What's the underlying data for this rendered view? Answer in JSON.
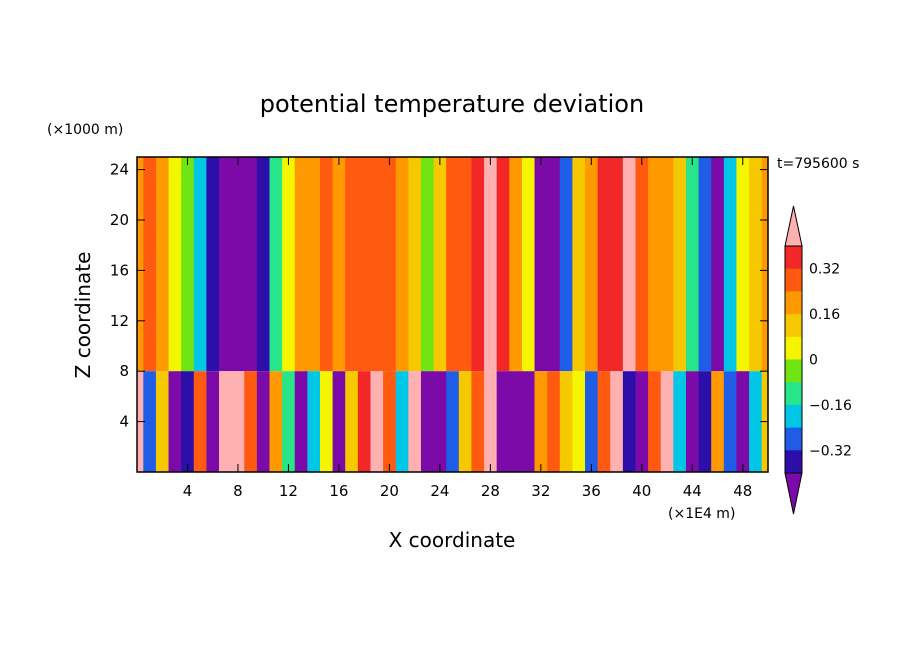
{
  "chart_data": {
    "type": "heatmap",
    "title": "potential temperature deviation",
    "xlabel": "X coordinate",
    "ylabel": "Z coordinate",
    "x_unit": "(×1E4 m)",
    "y_unit": "(×1000 m)",
    "time_label": "t=795600 s",
    "xlim": [
      0,
      50
    ],
    "ylim": [
      0,
      25
    ],
    "x_ticks": [
      4,
      8,
      12,
      16,
      20,
      24,
      28,
      32,
      36,
      40,
      44,
      48
    ],
    "y_ticks": [
      4,
      8,
      12,
      16,
      20,
      24
    ],
    "x_tick_labels": [
      "4",
      "8",
      "12",
      "16",
      "20",
      "24",
      "28",
      "32",
      "36",
      "40",
      "44",
      "48"
    ],
    "y_tick_labels": [
      "4",
      "8",
      "12",
      "16",
      "20",
      "24"
    ],
    "colorbar": {
      "levels": [
        -0.4,
        -0.32,
        -0.24,
        -0.16,
        -0.08,
        0,
        0.08,
        0.16,
        0.24,
        0.32,
        0.4
      ],
      "tick_values": [
        0.32,
        0.16,
        0,
        -0.16,
        -0.32
      ],
      "tick_labels": [
        "0.32",
        "0.16",
        "0",
        "−0.16",
        "−0.32"
      ],
      "colors": [
        "#7b0aa8",
        "#2c0fa8",
        "#1f5de6",
        "#00c7e6",
        "#27e68a",
        "#6fe614",
        "#f5f500",
        "#f5c800",
        "#ff9900",
        "#ff5a10",
        "#f22828",
        "#ffb0b0"
      ],
      "extend": "both"
    },
    "interface_height": 8,
    "upper_columns": [
      {
        "x": 0,
        "v": 0.22
      },
      {
        "x": 1,
        "v": 0.27
      },
      {
        "x": 2,
        "v": 0.17
      },
      {
        "x": 3,
        "v": 0.05
      },
      {
        "x": 4,
        "v": -0.05
      },
      {
        "x": 5,
        "v": -0.2
      },
      {
        "x": 6,
        "v": -0.38
      },
      {
        "x": 7,
        "v": -0.46
      },
      {
        "x": 8,
        "v": -0.5
      },
      {
        "x": 9,
        "v": -0.48
      },
      {
        "x": 10,
        "v": -0.36
      },
      {
        "x": 11,
        "v": -0.12
      },
      {
        "x": 12,
        "v": 0.05
      },
      {
        "x": 13,
        "v": 0.16
      },
      {
        "x": 14,
        "v": 0.2
      },
      {
        "x": 15,
        "v": 0.25
      },
      {
        "x": 16,
        "v": 0.2
      },
      {
        "x": 17,
        "v": 0.25
      },
      {
        "x": 18,
        "v": 0.27
      },
      {
        "x": 19,
        "v": 0.27
      },
      {
        "x": 20,
        "v": 0.24
      },
      {
        "x": 21,
        "v": 0.2
      },
      {
        "x": 22,
        "v": 0.1
      },
      {
        "x": 23,
        "v": -0.05
      },
      {
        "x": 24,
        "v": 0.14
      },
      {
        "x": 25,
        "v": 0.24
      },
      {
        "x": 26,
        "v": 0.28
      },
      {
        "x": 27,
        "v": 0.35
      },
      {
        "x": 28,
        "v": 0.4
      },
      {
        "x": 29,
        "v": 0.34
      },
      {
        "x": 30,
        "v": 0.2
      },
      {
        "x": 31,
        "v": 0.0
      },
      {
        "x": 32,
        "v": -0.45
      },
      {
        "x": 33,
        "v": -0.5
      },
      {
        "x": 34,
        "v": -0.3
      },
      {
        "x": 35,
        "v": 0.1
      },
      {
        "x": 36,
        "v": 0.22
      },
      {
        "x": 37,
        "v": 0.32
      },
      {
        "x": 38,
        "v": 0.36
      },
      {
        "x": 39,
        "v": 0.4
      },
      {
        "x": 40,
        "v": 0.3
      },
      {
        "x": 41,
        "v": 0.2
      },
      {
        "x": 42,
        "v": 0.22
      },
      {
        "x": 43,
        "v": 0.12
      },
      {
        "x": 44,
        "v": -0.1
      },
      {
        "x": 45,
        "v": -0.3
      },
      {
        "x": 46,
        "v": -0.42
      },
      {
        "x": 47,
        "v": -0.2
      },
      {
        "x": 48,
        "v": 0.05
      },
      {
        "x": 49,
        "v": 0.15
      },
      {
        "x": 50,
        "v": 0.2
      }
    ],
    "lower_columns": [
      {
        "x": 0,
        "v": 0.4
      },
      {
        "x": 1,
        "v": -0.3
      },
      {
        "x": 2,
        "v": 0.1
      },
      {
        "x": 3,
        "v": -0.45
      },
      {
        "x": 4,
        "v": -0.4
      },
      {
        "x": 5,
        "v": 0.25
      },
      {
        "x": 6,
        "v": -0.45
      },
      {
        "x": 7,
        "v": 0.4
      },
      {
        "x": 8,
        "v": 0.45
      },
      {
        "x": 9,
        "v": 0.3
      },
      {
        "x": 10,
        "v": -0.45
      },
      {
        "x": 11,
        "v": 0.2
      },
      {
        "x": 12,
        "v": -0.1
      },
      {
        "x": 13,
        "v": -0.45
      },
      {
        "x": 14,
        "v": -0.2
      },
      {
        "x": 15,
        "v": 0.05
      },
      {
        "x": 16,
        "v": -0.5
      },
      {
        "x": 17,
        "v": 0.15
      },
      {
        "x": 18,
        "v": 0.35
      },
      {
        "x": 19,
        "v": 0.42
      },
      {
        "x": 20,
        "v": 0.25
      },
      {
        "x": 21,
        "v": -0.2
      },
      {
        "x": 22,
        "v": 0.4
      },
      {
        "x": 23,
        "v": -0.45
      },
      {
        "x": 24,
        "v": -0.48
      },
      {
        "x": 25,
        "v": -0.3
      },
      {
        "x": 26,
        "v": 0.1
      },
      {
        "x": 27,
        "v": 0.3
      },
      {
        "x": 28,
        "v": 0.42
      },
      {
        "x": 29,
        "v": -0.45
      },
      {
        "x": 30,
        "v": -0.5
      },
      {
        "x": 31,
        "v": -0.45
      },
      {
        "x": 32,
        "v": 0.2
      },
      {
        "x": 33,
        "v": 0.3
      },
      {
        "x": 34,
        "v": 0.15
      },
      {
        "x": 35,
        "v": 0.0
      },
      {
        "x": 36,
        "v": -0.3
      },
      {
        "x": 37,
        "v": 0.25
      },
      {
        "x": 38,
        "v": 0.4
      },
      {
        "x": 39,
        "v": -0.35
      },
      {
        "x": 40,
        "v": -0.45
      },
      {
        "x": 41,
        "v": 0.3
      },
      {
        "x": 42,
        "v": 0.45
      },
      {
        "x": 43,
        "v": -0.2
      },
      {
        "x": 44,
        "v": -0.48
      },
      {
        "x": 45,
        "v": -0.4
      },
      {
        "x": 46,
        "v": 0.2
      },
      {
        "x": 47,
        "v": -0.3
      },
      {
        "x": 48,
        "v": -0.45
      },
      {
        "x": 49,
        "v": -0.2
      },
      {
        "x": 50,
        "v": 0.1
      }
    ]
  }
}
